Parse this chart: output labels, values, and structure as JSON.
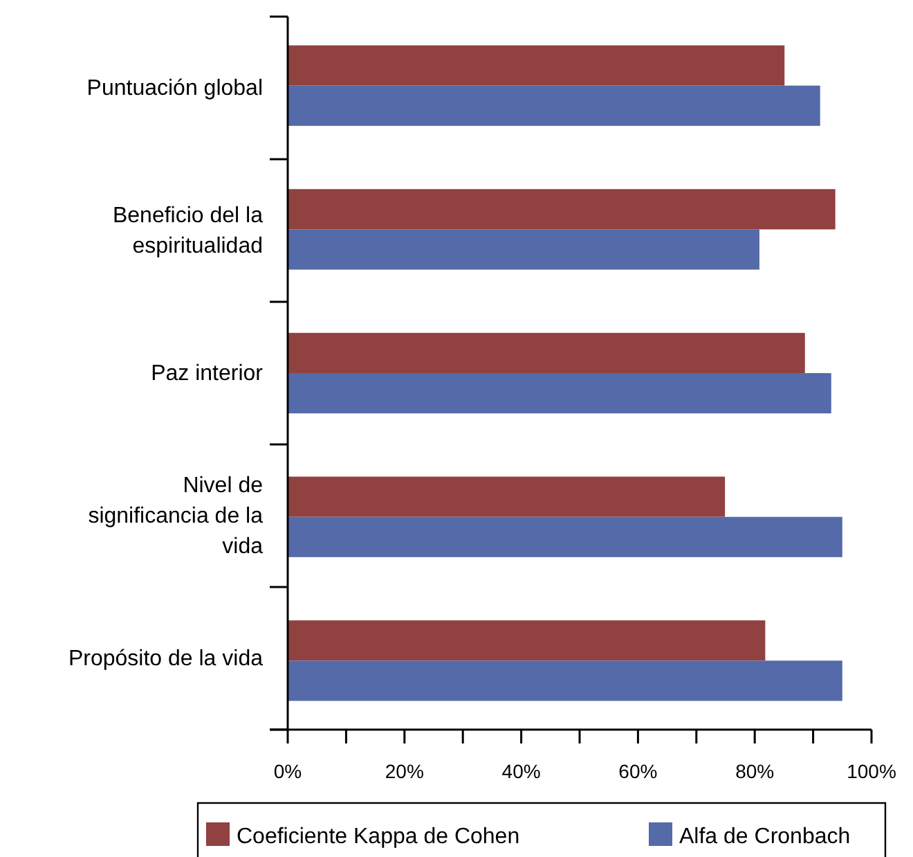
{
  "chart_data": {
    "type": "bar",
    "orientation": "horizontal",
    "categories": [
      "Puntuación global",
      "Beneficio del la espiritualidad",
      "Paz interior",
      "Nivel de significancia de la vida",
      "Propósito de la vida"
    ],
    "series": [
      {
        "name": "Coeficiente Kappa de Cohen",
        "color": "#914140",
        "values": [
          85.1,
          93.8,
          88.6,
          74.9,
          81.8
        ]
      },
      {
        "name": "Alfa de Cronbach",
        "color": "#546aa9",
        "values": [
          91.2,
          80.8,
          93.1,
          95.0,
          95.0
        ]
      }
    ],
    "xlim": [
      0,
      100
    ],
    "xticks": [
      {
        "value": 0,
        "label": "0%"
      },
      {
        "value": 10,
        "label": null
      },
      {
        "value": 20,
        "label": "20%"
      },
      {
        "value": 30,
        "label": null
      },
      {
        "value": 40,
        "label": "40%"
      },
      {
        "value": 50,
        "label": null
      },
      {
        "value": 60,
        "label": "60%"
      },
      {
        "value": 70,
        "label": null
      },
      {
        "value": 80,
        "label": "80%"
      },
      {
        "value": 90,
        "label": null
      },
      {
        "value": 100,
        "label": "100%"
      }
    ],
    "grid": false,
    "legend": "bottom"
  }
}
